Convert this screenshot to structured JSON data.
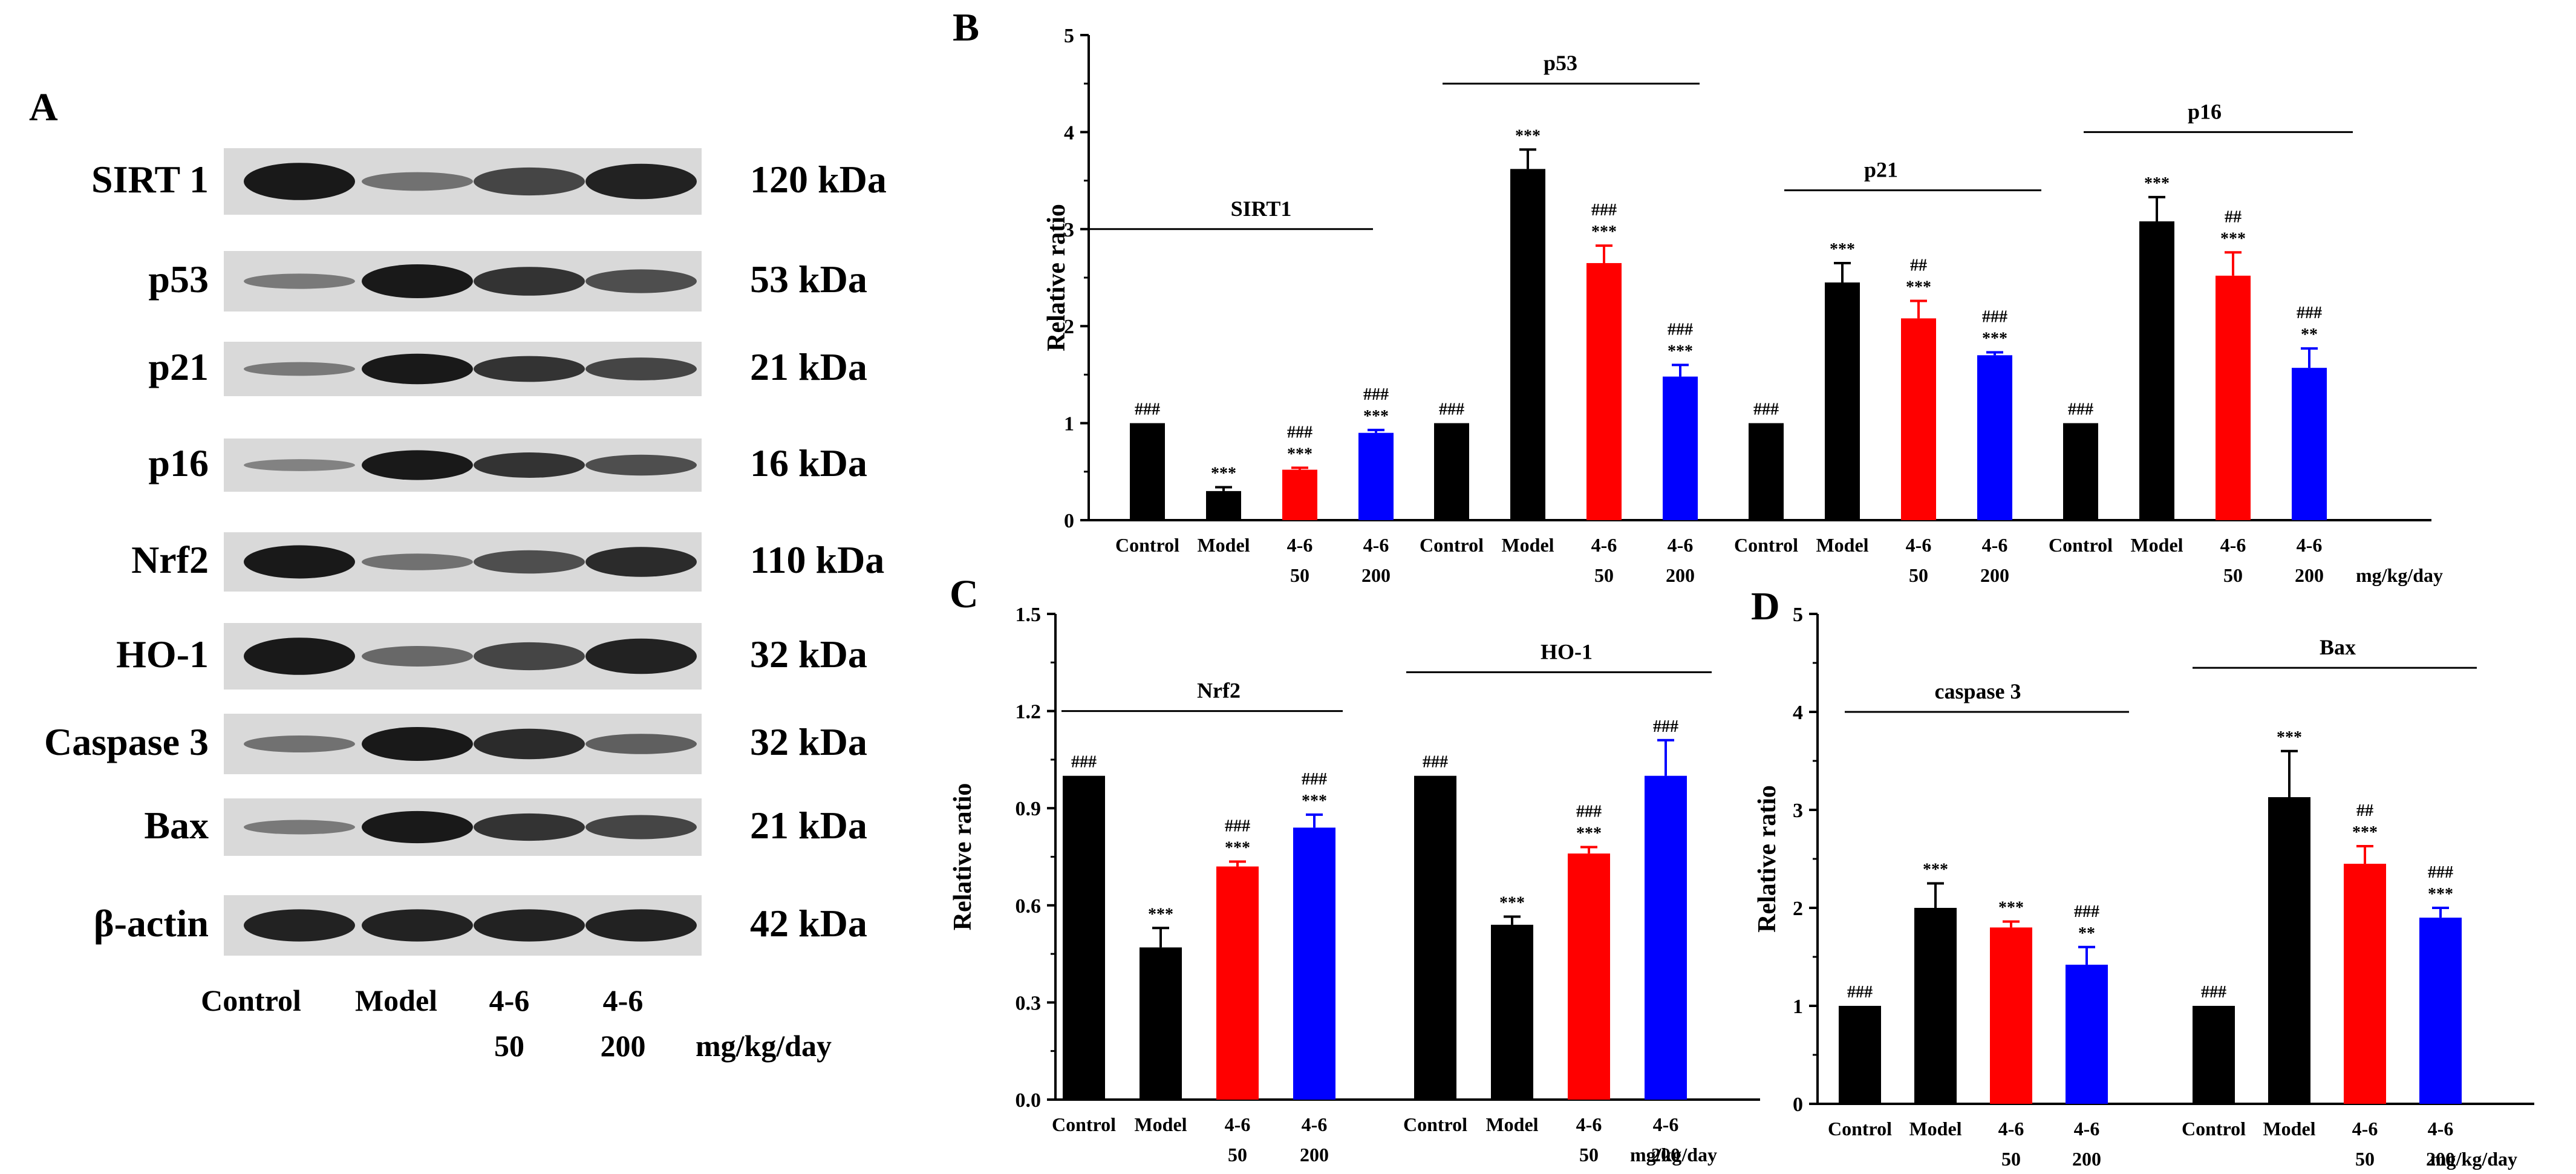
{
  "panel_a": {
    "letter": "A",
    "bands": [
      {
        "name": "SIRT 1",
        "size": "120 kDa",
        "intensity": [
          1.0,
          0.5,
          0.75,
          0.95
        ]
      },
      {
        "name": "p53",
        "size": "53 kDa",
        "intensity": [
          0.45,
          1.0,
          0.85,
          0.7
        ]
      },
      {
        "name": "p21",
        "size": "21 kDa",
        "intensity": [
          0.45,
          1.0,
          0.85,
          0.75
        ]
      },
      {
        "name": "p16",
        "size": "16 kDa",
        "intensity": [
          0.4,
          1.0,
          0.85,
          0.7
        ]
      },
      {
        "name": "Nrf2",
        "size": "110 kDa",
        "intensity": [
          1.0,
          0.5,
          0.7,
          0.9
        ]
      },
      {
        "name": "HO-1",
        "size": "32 kDa",
        "intensity": [
          1.0,
          0.55,
          0.75,
          0.95
        ]
      },
      {
        "name": "Caspase 3",
        "size": "32 kDa",
        "intensity": [
          0.5,
          1.0,
          0.9,
          0.6
        ]
      },
      {
        "name": "Bax",
        "size": "21 kDa",
        "intensity": [
          0.45,
          1.0,
          0.85,
          0.75
        ]
      },
      {
        "name": "β-actin",
        "size": "42 kDa",
        "intensity": [
          0.95,
          0.95,
          0.95,
          0.95
        ]
      }
    ],
    "lanes": [
      "Control",
      "Model",
      "4-6",
      "4-6"
    ],
    "lane_doses": [
      "50",
      "200"
    ],
    "units": "mg/kg/day"
  },
  "colors": {
    "control": "#000000",
    "model": "#000000",
    "low": "#ff0000",
    "high": "#0000ff"
  },
  "chart_data": [
    {
      "panel": "B",
      "type": "bar",
      "ylabel": "Relative ratio",
      "ylim": [
        0,
        5
      ],
      "yticks": [
        "0",
        "1",
        "2",
        "3",
        "4",
        "5"
      ],
      "category_labels": [
        "Control",
        "Model",
        "4-6",
        "4-6"
      ],
      "dose_labels": [
        "50",
        "200"
      ],
      "units": "mg/kg/day",
      "groups": [
        {
          "name": "SIRT1",
          "values": [
            1.0,
            0.3,
            0.52,
            0.9
          ],
          "errors": [
            0,
            0.04,
            0.02,
            0.03
          ],
          "marks": [
            [
              "###"
            ],
            [
              "***"
            ],
            [
              "###",
              "***"
            ],
            [
              "###",
              "***"
            ]
          ]
        },
        {
          "name": "p53",
          "values": [
            1.0,
            3.62,
            2.65,
            1.48
          ],
          "errors": [
            0,
            0.2,
            0.18,
            0.12
          ],
          "marks": [
            [
              "###"
            ],
            [
              "***"
            ],
            [
              "###",
              "***"
            ],
            [
              "###",
              "***"
            ]
          ]
        },
        {
          "name": "p21",
          "values": [
            1.0,
            2.45,
            2.08,
            1.7
          ],
          "errors": [
            0,
            0.2,
            0.18,
            0.03
          ],
          "marks": [
            [
              "###"
            ],
            [
              "***"
            ],
            [
              "##",
              "***"
            ],
            [
              "###",
              "***"
            ]
          ]
        },
        {
          "name": "p16",
          "values": [
            1.0,
            3.08,
            2.52,
            1.57
          ],
          "errors": [
            0,
            0.25,
            0.24,
            0.2
          ],
          "marks": [
            [
              "###"
            ],
            [
              "***"
            ],
            [
              "##",
              "***"
            ],
            [
              "###",
              "**"
            ]
          ]
        }
      ]
    },
    {
      "panel": "C",
      "type": "bar",
      "ylabel": "Relative ratio",
      "ylim": [
        0,
        1.5
      ],
      "yticks": [
        "0.0",
        "0.3",
        "0.6",
        "0.9",
        "1.2",
        "1.5"
      ],
      "category_labels": [
        "Control",
        "Model",
        "4-6",
        "4-6"
      ],
      "dose_labels": [
        "50",
        "200"
      ],
      "units": "mg/kg/day",
      "groups": [
        {
          "name": "Nrf2",
          "values": [
            1.0,
            0.47,
            0.72,
            0.84
          ],
          "errors": [
            0,
            0.06,
            0.015,
            0.04
          ],
          "marks": [
            [
              "###"
            ],
            [
              "***"
            ],
            [
              "###",
              "***"
            ],
            [
              "###",
              "***"
            ]
          ]
        },
        {
          "name": "HO-1",
          "values": [
            1.0,
            0.54,
            0.76,
            1.0
          ],
          "errors": [
            0,
            0.025,
            0.02,
            0.11
          ],
          "marks": [
            [
              "###"
            ],
            [
              "***"
            ],
            [
              "###",
              "***"
            ],
            [
              "###"
            ]
          ]
        }
      ]
    },
    {
      "panel": "D",
      "type": "bar",
      "ylabel": "Relative ratio",
      "ylim": [
        0,
        5
      ],
      "yticks": [
        "0",
        "1",
        "2",
        "3",
        "4",
        "5"
      ],
      "category_labels": [
        "Control",
        "Model",
        "4-6",
        "4-6"
      ],
      "dose_labels": [
        "50",
        "200"
      ],
      "units": "mg/kg/day",
      "groups": [
        {
          "name": "caspase 3",
          "values": [
            1.0,
            2.0,
            1.8,
            1.42
          ],
          "errors": [
            0,
            0.25,
            0.06,
            0.18
          ],
          "marks": [
            [
              "###"
            ],
            [
              "***"
            ],
            [
              "***"
            ],
            [
              "###",
              "**"
            ]
          ]
        },
        {
          "name": "Bax",
          "values": [
            1.0,
            3.13,
            2.45,
            1.9
          ],
          "errors": [
            0,
            0.47,
            0.18,
            0.1
          ],
          "marks": [
            [
              "###"
            ],
            [
              "***"
            ],
            [
              "##",
              "***"
            ],
            [
              "###",
              "***"
            ]
          ]
        }
      ]
    }
  ]
}
